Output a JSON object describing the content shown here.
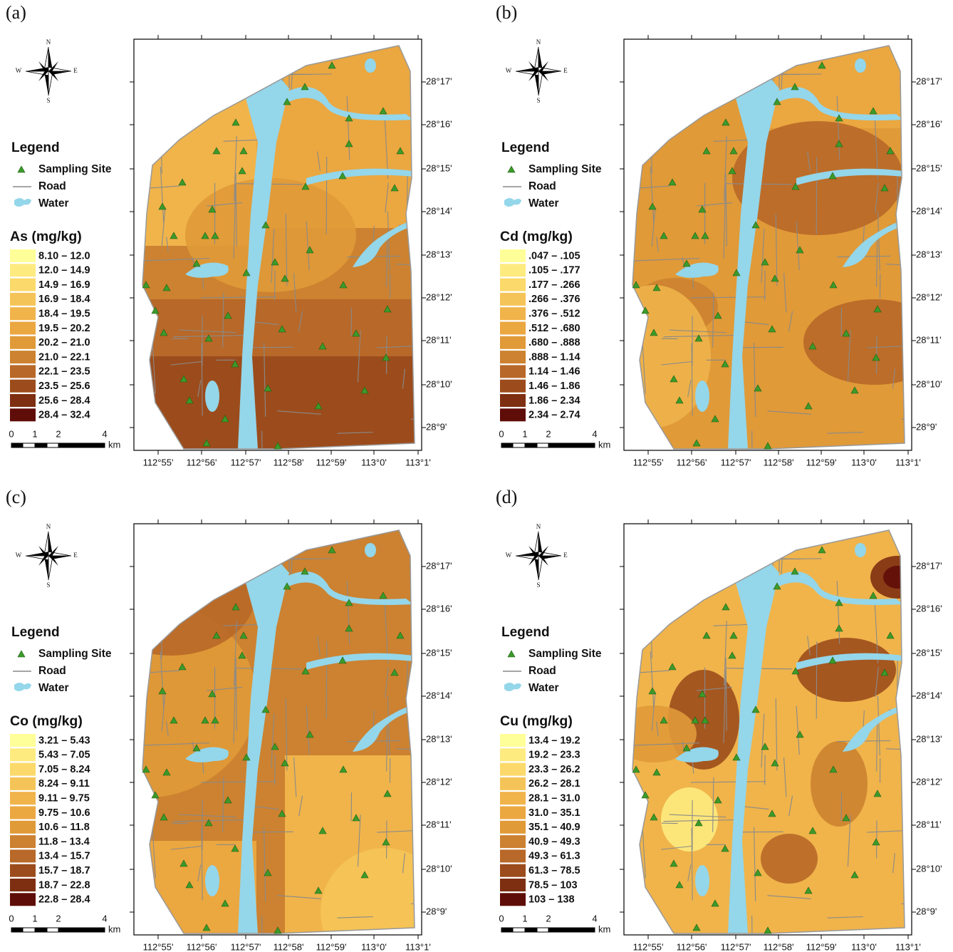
{
  "panels": [
    {
      "label": "(a)",
      "compass": [
        "N",
        "S",
        "E",
        "W"
      ],
      "legend_title": "Legend",
      "legend_items": [
        "Sampling Site",
        "Road",
        "Water"
      ],
      "variable": "As (mg/kg)",
      "classes": [
        "8.10 – 12.0",
        "12.0 – 14.9",
        "14.9 – 16.9",
        "16.9 – 18.4",
        "18.4 – 19.5",
        "19.5 – 20.2",
        "20.2 – 21.0",
        "21.0 – 22.1",
        "22.1 – 23.5",
        "23.5 – 25.6",
        "25.6 – 28.4",
        "28.4 – 32.4"
      ],
      "colors": [
        "#ffff99",
        "#fdeb80",
        "#fbd96a",
        "#f5c458",
        "#f0b44b",
        "#eba740",
        "#e09a38",
        "#cc8230",
        "#b86828",
        "#9c4c1c",
        "#7e2f12",
        "#5f0d08"
      ],
      "scale_labels": [
        "0",
        "1",
        "2",
        "4",
        "km"
      ],
      "lat_labels": [
        "28°17'",
        "28°16'",
        "28°15'",
        "28°14'",
        "28°13'",
        "28°12'",
        "28°11'",
        "28°10'",
        "28°9'"
      ],
      "lon_labels": [
        "112°55'",
        "112°56'",
        "112°57'",
        "112°58'",
        "112°59'",
        "113°0'",
        "113°1'"
      ]
    },
    {
      "label": "(b)",
      "compass": [
        "N",
        "S",
        "E",
        "W"
      ],
      "legend_title": "Legend",
      "legend_items": [
        "Sampling Site",
        "Road",
        "Water"
      ],
      "variable": "Cd (mg/kg)",
      "classes": [
        ".047 – .105",
        ".105 – .177",
        ".177 – .266",
        ".266 – .376",
        ".376 – .512",
        ".512 – .680",
        ".680 – .888",
        ".888 – 1.14",
        "1.14 – 1.46",
        "1.46 – 1.86",
        "1.86 – 2.34",
        "2.34 – 2.74"
      ],
      "colors": [
        "#ffff99",
        "#fdeb80",
        "#fbd96a",
        "#f5c458",
        "#f0b44b",
        "#eba740",
        "#e09a38",
        "#cc8230",
        "#b86828",
        "#9c4c1c",
        "#7e2f12",
        "#5f0d08"
      ],
      "scale_labels": [
        "0",
        "1",
        "2",
        "4",
        "km"
      ],
      "lat_labels": [
        "28°17'",
        "28°16'",
        "28°15'",
        "28°14'",
        "28°13'",
        "28°12'",
        "28°11'",
        "28°10'",
        "28°9'"
      ],
      "lon_labels": [
        "112°55'",
        "112°56'",
        "112°57'",
        "112°58'",
        "112°59'",
        "113°0'",
        "113°1'"
      ]
    },
    {
      "label": "(c)",
      "compass": [
        "N",
        "S",
        "E",
        "W"
      ],
      "legend_title": "Legend",
      "legend_items": [
        "Sampling Site",
        "Road",
        "Water"
      ],
      "variable": "Co (mg/kg)",
      "classes": [
        "3.21 – 5.43",
        "5.43 – 7.05",
        "7.05 – 8.24",
        "8.24 – 9.11",
        "9.11 – 9.75",
        "9.75 – 10.6",
        "10.6 – 11.8",
        "11.8 – 13.4",
        "13.4 – 15.7",
        "15.7 – 18.7",
        "18.7 – 22.8",
        "22.8 – 28.4"
      ],
      "colors": [
        "#ffff99",
        "#fdeb80",
        "#fbd96a",
        "#f5c458",
        "#f0b44b",
        "#eba740",
        "#e09a38",
        "#cc8230",
        "#b86828",
        "#9c4c1c",
        "#7e2f12",
        "#5f0d08"
      ],
      "scale_labels": [
        "0",
        "1",
        "2",
        "4",
        "km"
      ],
      "lat_labels": [
        "28°17'",
        "28°16'",
        "28°15'",
        "28°14'",
        "28°13'",
        "28°12'",
        "28°11'",
        "28°10'",
        "28°9'"
      ],
      "lon_labels": [
        "112°55'",
        "112°56'",
        "112°57'",
        "112°58'",
        "112°59'",
        "113°0'",
        "113°1'"
      ]
    },
    {
      "label": "(d)",
      "compass": [
        "N",
        "S",
        "E",
        "W"
      ],
      "legend_title": "Legend",
      "legend_items": [
        "Sampling Site",
        "Road",
        "Water"
      ],
      "variable": "Cu (mg/kg)",
      "classes": [
        "13.4 – 19.2",
        "19.2 – 23.3",
        "23.3 – 26.2",
        "26.2 – 28.1",
        "28.1 – 31.0",
        "31.0 – 35.1",
        "35.1 – 40.9",
        "40.9 – 49.3",
        "49.3 – 61.3",
        "61.3 – 78.5",
        "78.5 – 103",
        "103 – 138"
      ],
      "colors": [
        "#ffff99",
        "#fdeb80",
        "#fbd96a",
        "#f5c458",
        "#f0b44b",
        "#eba740",
        "#e09a38",
        "#cc8230",
        "#b86828",
        "#9c4c1c",
        "#7e2f12",
        "#5f0d08"
      ],
      "scale_labels": [
        "0",
        "1",
        "2",
        "4",
        "km"
      ],
      "lat_labels": [
        "28°17'",
        "28°16'",
        "28°15'",
        "28°14'",
        "28°13'",
        "28°12'",
        "28°11'",
        "28°10'",
        "28°9'"
      ],
      "lon_labels": [
        "112°55'",
        "112°56'",
        "112°57'",
        "112°58'",
        "112°59'",
        "113°0'",
        "113°1'"
      ]
    }
  ]
}
